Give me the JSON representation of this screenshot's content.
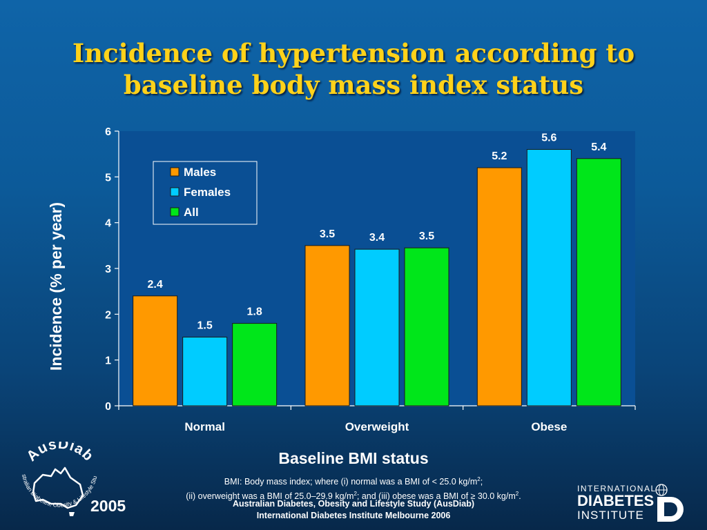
{
  "title": {
    "line1": "Incidence of hypertension according to",
    "line2": "baseline body mass index status"
  },
  "chart_data": {
    "type": "bar",
    "categories": [
      "Normal",
      "Overweight",
      "Obese"
    ],
    "series": [
      {
        "name": "Males",
        "values": [
          2.4,
          3.5,
          5.2
        ],
        "labels": [
          "2.4",
          "3.5",
          "5.2"
        ],
        "color": "#ff9900"
      },
      {
        "name": "Females",
        "values": [
          1.5,
          3.42,
          5.6
        ],
        "labels": [
          "1.5",
          "3.4",
          "5.6"
        ],
        "color": "#00ccff"
      },
      {
        "name": "All",
        "values": [
          1.8,
          3.45,
          5.4
        ],
        "labels": [
          "1.8",
          "3.5",
          "5.4"
        ],
        "color": "#00e61a"
      }
    ],
    "ylim": [
      0,
      6
    ],
    "yticks": [
      0,
      1,
      2,
      3,
      4,
      5,
      6
    ],
    "ylabel": "Incidence (% per year)",
    "xlabel": "Baseline BMI status",
    "legend_position": "top-left",
    "plot_background": "#0a4f94"
  },
  "footnote": {
    "line1_a": "BMI: Body mass index; where (i) normal was a BMI of < 25.0 kg/m",
    "line1_sup": "2",
    "line1_b": ";",
    "line2_a": "(ii) overweight was a BMI of 25.0–29.9 kg/m",
    "line2_sup": "2",
    "line2_b": "; and (iii) obese was a BMI of  ≥ 30.0 kg/m",
    "line2_sup2": "2",
    "line2_c": "."
  },
  "credit": {
    "line1": "Australian Diabetes, Obesity and Lifestyle Study (AusDiab)",
    "line2": "International Diabetes Institute Melbourne 2006"
  },
  "logo_ausdiab": {
    "name": "AusDiab",
    "tagline": "Australian Diabetes, Obesity & Lifestyle Study",
    "year": "2005"
  },
  "logo_idi": {
    "line1": "INTERNATIONAL",
    "line2": "DIABETES",
    "line3": "INSTITUTE"
  },
  "colors": {
    "title": "#ffd21a",
    "text": "#ffffff"
  }
}
